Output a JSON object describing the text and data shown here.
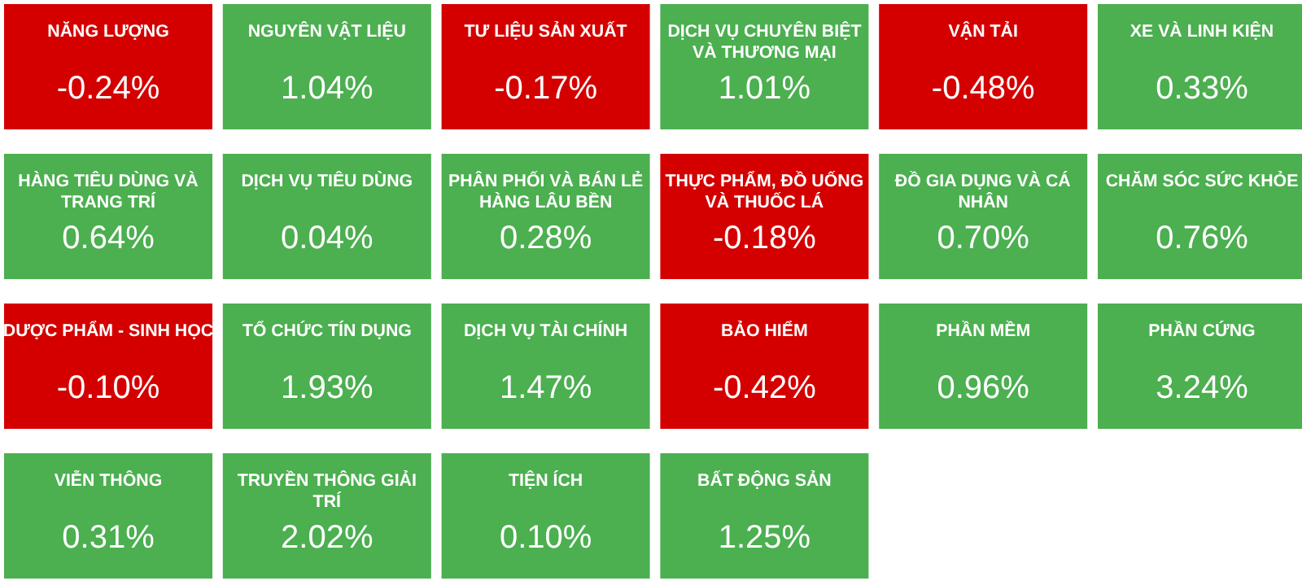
{
  "chart_data": {
    "type": "other",
    "categories": [
      "NĂNG LƯỢNG",
      "NGUYÊN VẬT LIỆU",
      "TƯ LIỆU SẢN XUẤT",
      "DỊCH VỤ CHUYÊN BIỆT VÀ THƯƠNG MẠI",
      "VẬN TẢI",
      "XE VÀ LINH KIỆN",
      "HÀNG TIÊU DÙNG VÀ TRANG TRÍ",
      "DỊCH VỤ TIÊU DÙNG",
      "PHÂN PHỐI VÀ BÁN LẺ HÀNG LÂU BỀN",
      "THỰC PHẨM, ĐỒ UỐNG VÀ THUỐC LÁ",
      "ĐỒ GIA DỤNG VÀ CÁ NHÂN",
      "CHĂM SÓC SỨC KHỎE",
      "DƯỢC PHẨM - SINH HỌC",
      "TỔ CHỨC TÍN DỤNG",
      "DỊCH VỤ TÀI CHÍNH",
      "BẢO HIỂM",
      "PHẦN MỀM",
      "PHẦN CỨNG",
      "VIỄN THÔNG",
      "TRUYỀN THÔNG GIẢI TRÍ",
      "TIỆN ÍCH",
      "BẤT ĐỘNG SẢN"
    ],
    "values": [
      -0.24,
      1.04,
      -0.17,
      1.01,
      -0.48,
      0.33,
      0.64,
      0.04,
      0.28,
      -0.18,
      0.7,
      0.76,
      -0.1,
      1.93,
      1.47,
      -0.42,
      0.96,
      3.24,
      0.31,
      2.02,
      0.1,
      1.25
    ],
    "value_labels": [
      "-0.24%",
      "1.04%",
      "-0.17%",
      "1.01%",
      "-0.48%",
      "0.33%",
      "0.64%",
      "0.04%",
      "0.28%",
      "-0.18%",
      "0.70%",
      "0.76%",
      "-0.10%",
      "1.93%",
      "1.47%",
      "-0.42%",
      "0.96%",
      "3.24%",
      "0.31%",
      "2.02%",
      "0.10%",
      "1.25%"
    ],
    "colors": [
      "#d40000",
      "#4caf50",
      "#d40000",
      "#4caf50",
      "#d40000",
      "#4caf50",
      "#4caf50",
      "#4caf50",
      "#4caf50",
      "#d40000",
      "#4caf50",
      "#4caf50",
      "#d40000",
      "#4caf50",
      "#4caf50",
      "#d40000",
      "#4caf50",
      "#4caf50",
      "#4caf50",
      "#4caf50",
      "#4caf50",
      "#4caf50"
    ]
  }
}
